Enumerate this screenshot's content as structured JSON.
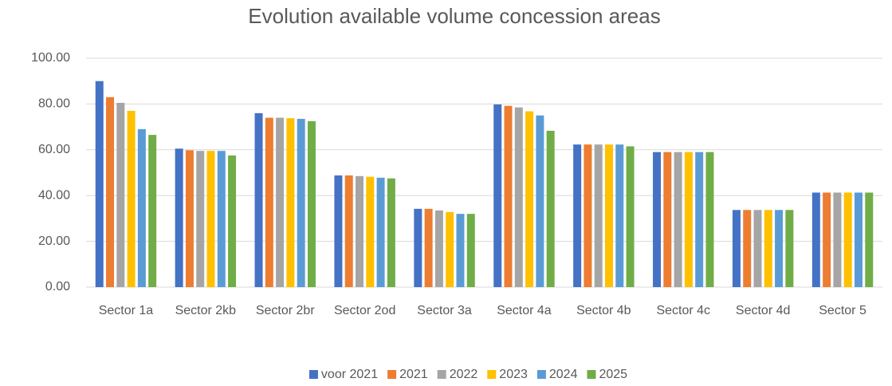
{
  "chart_data": {
    "type": "bar",
    "title": "Evolution available volume concession areas",
    "categories": [
      "Sector 1a",
      "Sector 2kb",
      "Sector 2br",
      "Sector 2od",
      "Sector 3a",
      "Sector 4a",
      "Sector 4b",
      "Sector 4c",
      "Sector 4d",
      "Sector 5"
    ],
    "series": [
      {
        "name": "voor 2021",
        "color": "#4472c4",
        "values": [
          90.0,
          60.5,
          76.0,
          48.8,
          34.2,
          79.8,
          62.3,
          59.0,
          33.7,
          41.3
        ]
      },
      {
        "name": "2021",
        "color": "#ed7d31",
        "values": [
          83.0,
          59.8,
          74.0,
          48.8,
          34.2,
          79.2,
          62.3,
          59.0,
          33.7,
          41.3
        ]
      },
      {
        "name": "2022",
        "color": "#a5a5a5",
        "values": [
          80.5,
          59.5,
          74.0,
          48.5,
          33.5,
          78.5,
          62.3,
          59.0,
          33.7,
          41.3
        ]
      },
      {
        "name": "2023",
        "color": "#ffc000",
        "values": [
          77.0,
          59.5,
          73.8,
          48.2,
          32.8,
          76.8,
          62.3,
          59.0,
          33.7,
          41.3
        ]
      },
      {
        "name": "2024",
        "color": "#5b9bd5",
        "values": [
          69.0,
          59.5,
          73.5,
          47.8,
          32.0,
          75.0,
          62.3,
          59.0,
          33.7,
          41.3
        ]
      },
      {
        "name": "2025",
        "color": "#70ad47",
        "values": [
          66.5,
          57.5,
          72.5,
          47.5,
          32.0,
          68.3,
          61.5,
          59.0,
          33.7,
          41.3
        ]
      }
    ],
    "ylim": [
      0,
      100
    ],
    "yticks": [
      {
        "value": 0,
        "label": "0.00"
      },
      {
        "value": 20,
        "label": "20.00"
      },
      {
        "value": 40,
        "label": "40.00"
      },
      {
        "value": 60,
        "label": "60.00"
      },
      {
        "value": 80,
        "label": "80.00"
      },
      {
        "value": 100,
        "label": "100.00"
      }
    ],
    "grid": true,
    "legend": "bottom"
  }
}
